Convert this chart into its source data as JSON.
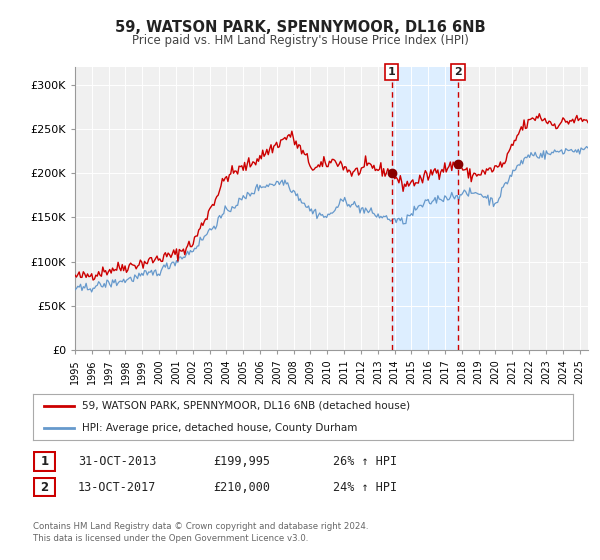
{
  "title": "59, WATSON PARK, SPENNYMOOR, DL16 6NB",
  "subtitle": "Price paid vs. HM Land Registry's House Price Index (HPI)",
  "xlim": [
    1995.0,
    2025.5
  ],
  "ylim": [
    0,
    320000
  ],
  "yticks": [
    0,
    50000,
    100000,
    150000,
    200000,
    250000,
    300000
  ],
  "ytick_labels": [
    "£0",
    "£50K",
    "£100K",
    "£150K",
    "£200K",
    "£250K",
    "£300K"
  ],
  "xticks": [
    1995,
    1996,
    1997,
    1998,
    1999,
    2000,
    2001,
    2002,
    2003,
    2004,
    2005,
    2006,
    2007,
    2008,
    2009,
    2010,
    2011,
    2012,
    2013,
    2014,
    2015,
    2016,
    2017,
    2018,
    2019,
    2020,
    2021,
    2022,
    2023,
    2024,
    2025
  ],
  "red_line_color": "#cc0000",
  "blue_line_color": "#6699cc",
  "marker_color": "#880000",
  "vline_color": "#cc0000",
  "shade_color": "#ddeeff",
  "sale1_x": 2013.83,
  "sale1_y": 199995,
  "sale1_label": "1",
  "sale2_x": 2017.78,
  "sale2_y": 210000,
  "sale2_label": "2",
  "legend_label_red": "59, WATSON PARK, SPENNYMOOR, DL16 6NB (detached house)",
  "legend_label_blue": "HPI: Average price, detached house, County Durham",
  "table_row1": [
    "1",
    "31-OCT-2013",
    "£199,995",
    "26% ↑ HPI"
  ],
  "table_row2": [
    "2",
    "13-OCT-2017",
    "£210,000",
    "24% ↑ HPI"
  ],
  "footer1": "Contains HM Land Registry data © Crown copyright and database right 2024.",
  "footer2": "This data is licensed under the Open Government Licence v3.0.",
  "background_color": "#ffffff",
  "plot_bg_color": "#f0f0f0"
}
